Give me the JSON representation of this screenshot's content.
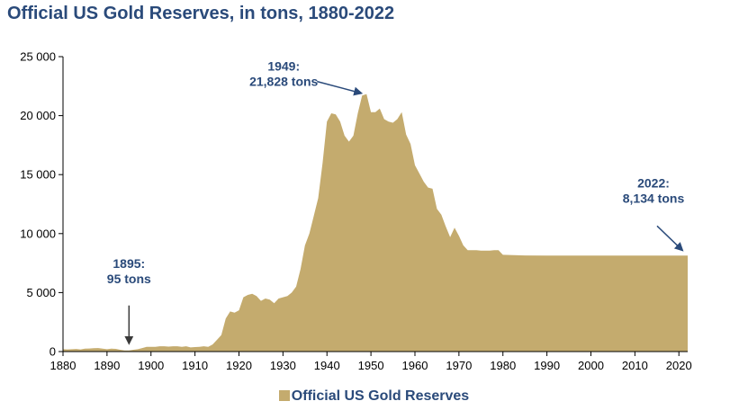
{
  "chart_data": {
    "type": "area",
    "title": "Official US Gold Reserves, in tons, 1880-2022",
    "xlabel": "",
    "ylabel": "",
    "xlim": [
      1880,
      2022
    ],
    "ylim": [
      0,
      25000
    ],
    "grid": false,
    "legend_position": "bottom",
    "color": "#c4ab6e",
    "yticks": [
      "0",
      "5 000",
      "10 000",
      "15 000",
      "20 000",
      "25 000"
    ],
    "xticks": [
      "1880",
      "1890",
      "1900",
      "1910",
      "1920",
      "1930",
      "1940",
      "1950",
      "1960",
      "1970",
      "1980",
      "1990",
      "2000",
      "2010",
      "2020"
    ],
    "series": [
      {
        "name": "Official US Gold Reserves",
        "x": [
          1880,
          1881,
          1882,
          1883,
          1884,
          1885,
          1886,
          1887,
          1888,
          1889,
          1890,
          1891,
          1892,
          1893,
          1894,
          1895,
          1896,
          1897,
          1898,
          1899,
          1900,
          1901,
          1902,
          1903,
          1904,
          1905,
          1906,
          1907,
          1908,
          1909,
          1910,
          1911,
          1912,
          1913,
          1914,
          1915,
          1916,
          1917,
          1918,
          1919,
          1920,
          1921,
          1922,
          1923,
          1924,
          1925,
          1926,
          1927,
          1928,
          1929,
          1930,
          1931,
          1932,
          1933,
          1934,
          1935,
          1936,
          1937,
          1938,
          1939,
          1940,
          1941,
          1942,
          1943,
          1944,
          1945,
          1946,
          1947,
          1948,
          1949,
          1950,
          1951,
          1952,
          1953,
          1954,
          1955,
          1956,
          1957,
          1958,
          1959,
          1960,
          1961,
          1962,
          1963,
          1964,
          1965,
          1966,
          1967,
          1968,
          1969,
          1970,
          1971,
          1972,
          1973,
          1974,
          1975,
          1976,
          1977,
          1978,
          1979,
          1980,
          1985,
          1990,
          1995,
          2000,
          2005,
          2010,
          2015,
          2022
        ],
        "values": [
          200,
          180,
          200,
          220,
          180,
          250,
          260,
          280,
          300,
          250,
          200,
          250,
          230,
          150,
          100,
          95,
          150,
          200,
          300,
          400,
          400,
          400,
          450,
          450,
          420,
          450,
          450,
          400,
          450,
          350,
          380,
          400,
          450,
          400,
          600,
          1000,
          1400,
          2800,
          3400,
          3300,
          3500,
          4600,
          4800,
          4900,
          4700,
          4300,
          4500,
          4400,
          4100,
          4500,
          4600,
          4700,
          5000,
          5500,
          7000,
          9000,
          10000,
          11500,
          13000,
          16000,
          19500,
          20200,
          20100,
          19500,
          18300,
          17800,
          18300,
          20200,
          21700,
          21828,
          20300,
          20300,
          20600,
          19700,
          19500,
          19400,
          19700,
          20300,
          18400,
          17600,
          15800,
          15100,
          14400,
          13900,
          13800,
          12100,
          11600,
          10600,
          9700,
          10500,
          9800,
          9000,
          8600,
          8600,
          8600,
          8550,
          8550,
          8550,
          8600,
          8600,
          8200,
          8150,
          8140,
          8140,
          8140,
          8134,
          8134,
          8134,
          8134
        ]
      }
    ],
    "annotations": [
      {
        "line1": "1895:",
        "line2": "95 tons",
        "x": 1895,
        "y": 95
      },
      {
        "line1": "1949:",
        "line2": "21,828 tons",
        "x": 1949,
        "y": 21828
      },
      {
        "line1": "2022:",
        "line2": "8,134 tons",
        "x": 2022,
        "y": 8134
      }
    ]
  }
}
